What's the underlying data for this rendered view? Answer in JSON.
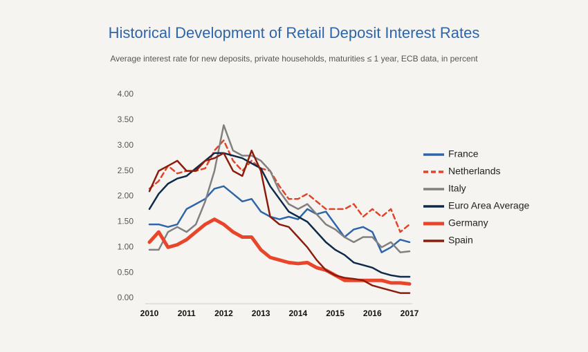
{
  "chart_data": {
    "type": "line",
    "title": "Historical Development of Retail Deposit Interest Rates",
    "subtitle": "Average interest rate for new deposits, private households, maturities ≤ 1 year, ECB data, in percent",
    "x": [
      2010,
      2010.25,
      2010.5,
      2010.75,
      2011,
      2011.25,
      2011.5,
      2011.75,
      2012,
      2012.25,
      2012.5,
      2012.75,
      2013,
      2013.25,
      2013.5,
      2013.75,
      2014,
      2014.25,
      2014.5,
      2014.75,
      2015,
      2015.25,
      2015.5,
      2015.75,
      2016,
      2016.25,
      2016.5,
      2016.75,
      2017
    ],
    "xlim": [
      2010,
      2017
    ],
    "xticks": [
      2010,
      2011,
      2012,
      2013,
      2014,
      2015,
      2016,
      2017
    ],
    "ylim": [
      0,
      4
    ],
    "yticks": [
      {
        "value": 0,
        "label": "0.00"
      },
      {
        "value": 0.5,
        "label": "0.50"
      },
      {
        "value": 1,
        "label": "1.00"
      },
      {
        "value": 1.5,
        "label": "1.50"
      },
      {
        "value": 2,
        "label": "2.00"
      },
      {
        "value": 2.5,
        "label": "2.50"
      },
      {
        "value": 3,
        "label": "3.00"
      },
      {
        "value": 3.5,
        "label": "3.50"
      },
      {
        "value": 4,
        "label": "4.00"
      }
    ],
    "grid": false,
    "legend": "right",
    "series": [
      {
        "name": "France",
        "color": "#2e64a8",
        "width": 2.5,
        "dash": false,
        "values": [
          1.45,
          1.45,
          1.4,
          1.45,
          1.75,
          1.85,
          1.95,
          2.15,
          2.2,
          2.05,
          1.9,
          1.95,
          1.7,
          1.6,
          1.55,
          1.6,
          1.55,
          1.75,
          1.65,
          1.7,
          1.45,
          1.2,
          1.35,
          1.4,
          1.3,
          0.9,
          1.0,
          1.15,
          1.1
        ]
      },
      {
        "name": "Netherlands",
        "color": "#e0442a",
        "width": 2.5,
        "dash": true,
        "values": [
          2.15,
          2.3,
          2.6,
          2.45,
          2.5,
          2.5,
          2.55,
          2.9,
          3.1,
          2.7,
          2.5,
          2.7,
          2.55,
          2.5,
          2.2,
          1.95,
          1.95,
          2.05,
          1.9,
          1.75,
          1.75,
          1.75,
          1.85,
          1.6,
          1.75,
          1.6,
          1.75,
          1.3,
          1.45
        ]
      },
      {
        "name": "Italy",
        "color": "#808080",
        "width": 2.5,
        "dash": false,
        "values": [
          0.95,
          0.95,
          1.3,
          1.4,
          1.3,
          1.45,
          1.9,
          2.5,
          3.4,
          2.9,
          2.8,
          2.8,
          2.7,
          2.5,
          2.1,
          1.85,
          1.75,
          1.85,
          1.65,
          1.45,
          1.35,
          1.2,
          1.1,
          1.2,
          1.2,
          1.0,
          1.1,
          0.9,
          0.92
        ]
      },
      {
        "name": "Euro Area Average",
        "color": "#0d2a4a",
        "width": 2.5,
        "dash": false,
        "values": [
          1.75,
          2.05,
          2.25,
          2.35,
          2.4,
          2.55,
          2.7,
          2.85,
          2.85,
          2.8,
          2.75,
          2.65,
          2.55,
          2.2,
          1.95,
          1.7,
          1.6,
          1.5,
          1.3,
          1.1,
          0.95,
          0.85,
          0.7,
          0.65,
          0.6,
          0.5,
          0.45,
          0.42,
          0.42
        ]
      },
      {
        "name": "Germany",
        "color": "#e8452a",
        "width": 5,
        "dash": false,
        "values": [
          1.1,
          1.3,
          1.0,
          1.05,
          1.15,
          1.3,
          1.45,
          1.55,
          1.45,
          1.3,
          1.2,
          1.2,
          0.95,
          0.8,
          0.75,
          0.7,
          0.68,
          0.7,
          0.6,
          0.55,
          0.45,
          0.35,
          0.35,
          0.35,
          0.35,
          0.35,
          0.3,
          0.3,
          0.28
        ]
      },
      {
        "name": "Spain",
        "color": "#8b1c0c",
        "width": 2.5,
        "dash": false,
        "values": [
          2.1,
          2.5,
          2.6,
          2.7,
          2.5,
          2.5,
          2.7,
          2.75,
          2.85,
          2.5,
          2.4,
          2.9,
          2.5,
          1.6,
          1.45,
          1.4,
          1.2,
          1.0,
          0.75,
          0.55,
          0.45,
          0.4,
          0.38,
          0.35,
          0.25,
          0.2,
          0.15,
          0.1,
          0.1
        ]
      }
    ]
  }
}
